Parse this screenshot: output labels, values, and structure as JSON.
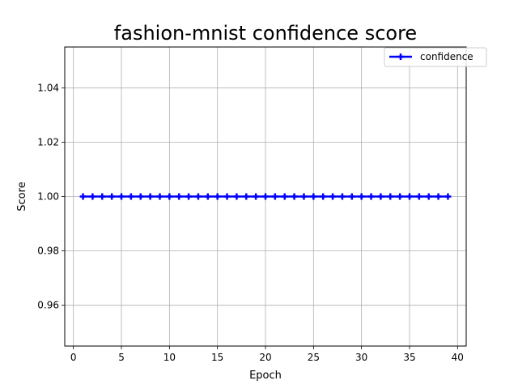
{
  "chart_data": {
    "type": "line",
    "title": "fashion-mnist confidence score",
    "xlabel": "Epoch",
    "ylabel": "Score",
    "xlim": [
      -0.9,
      40.9
    ],
    "ylim": [
      0.945,
      1.055
    ],
    "x_ticks": [
      0,
      5,
      10,
      15,
      20,
      25,
      30,
      35,
      40
    ],
    "y_ticks": [
      0.96,
      0.98,
      1.0,
      1.02,
      1.04
    ],
    "y_tick_labels": [
      "0.96",
      "0.98",
      "1.00",
      "1.02",
      "1.04"
    ],
    "grid": true,
    "legend_position": "top-right",
    "series": [
      {
        "name": "confidence",
        "color": "#0000ff",
        "marker": "plus",
        "x": [
          1,
          2,
          3,
          4,
          5,
          6,
          7,
          8,
          9,
          10,
          11,
          12,
          13,
          14,
          15,
          16,
          17,
          18,
          19,
          20,
          21,
          22,
          23,
          24,
          25,
          26,
          27,
          28,
          29,
          30,
          31,
          32,
          33,
          34,
          35,
          36,
          37,
          38,
          39
        ],
        "values": [
          1,
          1,
          1,
          1,
          1,
          1,
          1,
          1,
          1,
          1,
          1,
          1,
          1,
          1,
          1,
          1,
          1,
          1,
          1,
          1,
          1,
          1,
          1,
          1,
          1,
          1,
          1,
          1,
          1,
          1,
          1,
          1,
          1,
          1,
          1,
          1,
          1,
          1,
          1
        ]
      }
    ]
  }
}
